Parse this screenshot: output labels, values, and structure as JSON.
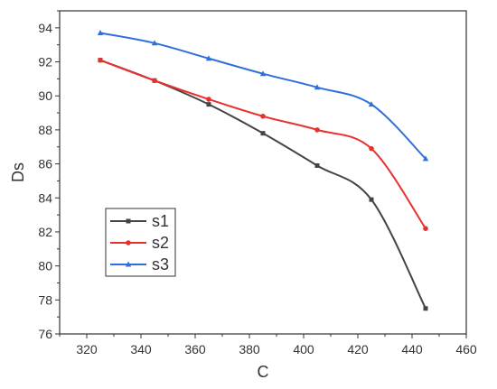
{
  "chart_data": {
    "type": "line",
    "title": "",
    "xlabel": "C",
    "ylabel": "Ds",
    "xlim": [
      310,
      460
    ],
    "ylim": [
      76,
      95
    ],
    "xticks": [
      320,
      340,
      360,
      380,
      400,
      420,
      440,
      460
    ],
    "yticks": [
      76,
      78,
      80,
      82,
      84,
      86,
      88,
      90,
      92,
      94
    ],
    "x": [
      325,
      345,
      365,
      385,
      405,
      425,
      445
    ],
    "series": [
      {
        "name": "s1",
        "color": "#444444",
        "marker": "square",
        "values": [
          92.1,
          90.9,
          89.5,
          87.8,
          85.9,
          83.9,
          77.5
        ]
      },
      {
        "name": "s2",
        "color": "#e8312f",
        "marker": "circle",
        "values": [
          92.1,
          90.9,
          89.8,
          88.8,
          88.0,
          86.9,
          82.2
        ]
      },
      {
        "name": "s3",
        "color": "#2f6fdc",
        "marker": "triangle",
        "values": [
          93.7,
          93.1,
          92.2,
          91.3,
          90.5,
          89.5,
          86.3
        ]
      }
    ],
    "legend_position": "bottom-left",
    "grid": false
  }
}
